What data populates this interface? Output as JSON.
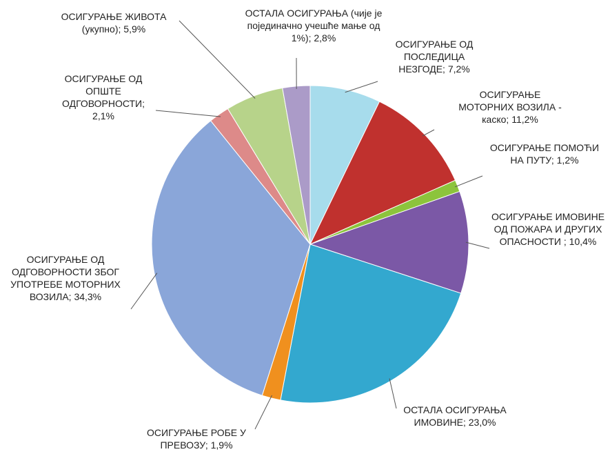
{
  "chart_data": {
    "type": "pie",
    "categories": [
      "ОСИГУРАЊЕ ОД ПОСЛЕДИЦА НЕЗГОДЕ;",
      "ОСИГУРАЊЕ МОТОРНИХ ВОЗИЛА - каско;",
      "ОСИГУРАЊЕ ПОМОЋИ НА ПУТУ;",
      "ОСИГУРАЊЕ ИМОВИНЕ ОД ПОЖАРА И ДРУГИХ ОПАСНОСТИ ;",
      "ОСТАЛА ОСИГУРАЊА ИМОВИНЕ;",
      "ОСИГУРАЊЕ РОБЕ У ПРЕВОЗУ;",
      "ОСИГУРАЊЕ ОД ОДГОВОРНОСТИ ЗБОГ УПОТРЕБЕ МОТОРНИХ ВОЗИЛА;",
      "ОСИГУРАЊЕ ОД ОПШТЕ ОДГОВОРНОСТИ;",
      "ОСИГУРАЊЕ ЖИВОТА (укупно);",
      "ОСТАЛА ОСИГУРАЊА (чије је појединачно учешће мање од 1%);"
    ],
    "values": [
      7.2,
      11.2,
      1.2,
      10.4,
      23.0,
      1.9,
      34.3,
      2.1,
      5.9,
      2.8
    ],
    "value_labels": [
      "7,2%",
      "11,2%",
      "1,2%",
      "10,4%",
      "23,0%",
      "1,9%",
      "34,3%",
      "2,1%",
      "5,9%",
      "2,8%"
    ],
    "colors": [
      "#a7dcec",
      "#c0312e",
      "#8cc43c",
      "#7b58a6",
      "#33a8cf",
      "#f0901e",
      "#8aa6d9",
      "#dd8a89",
      "#b7d38a",
      "#ab9bc8"
    ]
  }
}
